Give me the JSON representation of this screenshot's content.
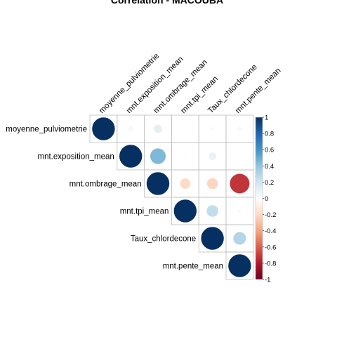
{
  "chart_data": {
    "type": "heatmap",
    "subtype": "correlation-upper-circle",
    "title": "Correlation - MACOUBA",
    "variables": [
      "moyenne_pulviometrie",
      "mnt.exposition_mean",
      "mnt.ombrage_mean",
      "mnt.tpi_mean",
      "Taux_chlordecone",
      "mnt.pente_mean"
    ],
    "matrix": [
      [
        1.0,
        0.05,
        0.12,
        0.0,
        0.03,
        0.04
      ],
      [
        0.05,
        1.0,
        0.45,
        0.02,
        0.1,
        0.0
      ],
      [
        0.12,
        0.45,
        1.0,
        -0.2,
        -0.22,
        -0.72
      ],
      [
        0.0,
        0.02,
        -0.2,
        1.0,
        0.25,
        0.03
      ],
      [
        0.03,
        0.1,
        -0.22,
        0.25,
        1.0,
        0.3
      ],
      [
        0.04,
        0.0,
        -0.72,
        0.03,
        0.3,
        1.0
      ]
    ],
    "colorbar": {
      "range": [
        -1,
        1
      ],
      "ticks": [
        "-1",
        "-0.8",
        "-0.6",
        "-0.4",
        "-0.2",
        "0",
        "0.2",
        "0.4",
        "0.6",
        "0.8",
        "1"
      ],
      "colors_low_to_high": [
        "#67001F",
        "#B2182B",
        "#D6604D",
        "#F4A582",
        "#FDDBC7",
        "#FFFFFF",
        "#D1E5F0",
        "#92C5DE",
        "#4393C3",
        "#2166AC",
        "#053061"
      ]
    }
  }
}
